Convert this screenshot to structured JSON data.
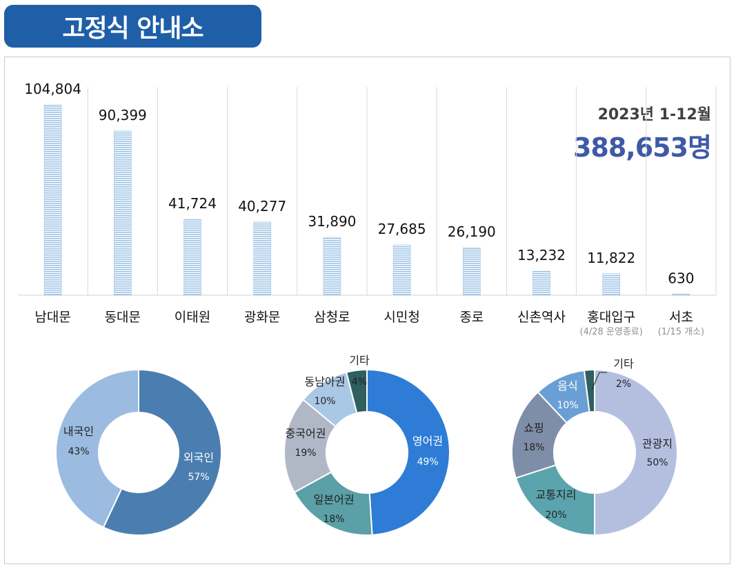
{
  "header": {
    "title": "고정식 안내소"
  },
  "summary": {
    "period": "2023년 1-12월",
    "total": "388,653명"
  },
  "chart_data": [
    {
      "type": "bar",
      "categories": [
        "남대문",
        "동대문",
        "이태원",
        "광화문",
        "삼청로",
        "시민청",
        "종로",
        "신촌역사",
        "홍대입구",
        "서초"
      ],
      "category_notes": [
        "",
        "",
        "",
        "",
        "",
        "",
        "",
        "",
        "(4/28 운영종료)",
        "(1/15 개소)"
      ],
      "values": [
        104804,
        90399,
        41724,
        40277,
        31890,
        27685,
        26190,
        13232,
        11822,
        630
      ],
      "value_labels": [
        "104,804",
        "90,399",
        "41,724",
        "40,277",
        "31,890",
        "27,685",
        "26,190",
        "13,232",
        "11,822",
        "630"
      ],
      "ylim": [
        0,
        120000
      ],
      "grid": "vertical separators",
      "colors": {
        "bar": "#9dc3e6",
        "bar_stripe": "#ffffff"
      }
    },
    {
      "type": "pie",
      "donut": true,
      "labels": [
        "외국인",
        "내국인"
      ],
      "values": [
        57,
        43
      ],
      "value_labels": [
        "57%",
        "43%"
      ],
      "colors": [
        "#4a7eb0",
        "#9bbbe0"
      ]
    },
    {
      "type": "pie",
      "donut": true,
      "labels": [
        "영어권",
        "일본어권",
        "중국어권",
        "동남아권",
        "기타"
      ],
      "values": [
        49,
        18,
        19,
        10,
        4
      ],
      "value_labels": [
        "49%",
        "18%",
        "19%",
        "10%",
        "4%"
      ],
      "colors": [
        "#2e7cd6",
        "#5aa0a6",
        "#b0b8c8",
        "#a9c8e6",
        "#2f5f5f"
      ]
    },
    {
      "type": "pie",
      "donut": true,
      "labels": [
        "관광지",
        "교통지리",
        "쇼핑",
        "음식",
        "기타"
      ],
      "values": [
        50,
        20,
        18,
        10,
        2
      ],
      "value_labels": [
        "50%",
        "20%",
        "18%",
        "10%",
        "2%"
      ],
      "colors": [
        "#b4bfe0",
        "#5ba3ad",
        "#7f8ea8",
        "#6a9fd6",
        "#2f5f5f"
      ]
    }
  ]
}
